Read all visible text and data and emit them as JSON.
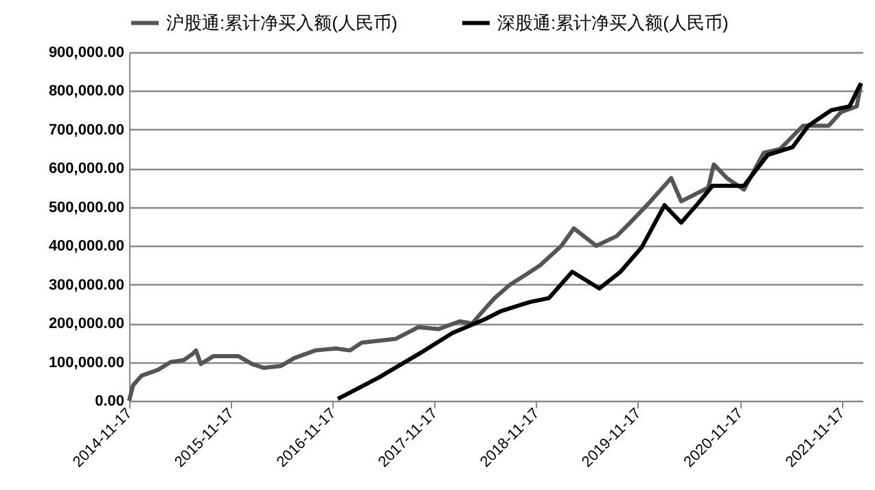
{
  "chart_data": {
    "type": "line",
    "legend": "top",
    "grid": "y",
    "line_style": "solid",
    "marker": "none",
    "xlim": [
      "2014-11-17",
      "2022-01-31"
    ],
    "xticks": [
      "2014-11-17",
      "2015-11-17",
      "2016-11-17",
      "2017-11-17",
      "2018-11-17",
      "2019-11-17",
      "2020-11-17",
      "2021-11-17"
    ],
    "ylim": [
      0,
      900000
    ],
    "yticks": [
      {
        "value": 0,
        "label": "0.00"
      },
      {
        "value": 100000,
        "label": "100,000.00"
      },
      {
        "value": 200000,
        "label": "200,000.00"
      },
      {
        "value": 300000,
        "label": "300,000.00"
      },
      {
        "value": 400000,
        "label": "400,000.00"
      },
      {
        "value": 500000,
        "label": "500,000.00"
      },
      {
        "value": 600000,
        "label": "600,000.00"
      },
      {
        "value": 700000,
        "label": "700,000.00"
      },
      {
        "value": 800000,
        "label": "800,000.00"
      },
      {
        "value": 900000,
        "label": "900,000.00"
      }
    ],
    "series": [
      {
        "name": "沪股通:累计净买入额(人民币)",
        "color": "#555555",
        "x": [
          "2014-11-17",
          "2014-12-01",
          "2015-01-01",
          "2015-03-01",
          "2015-04-15",
          "2015-06-01",
          "2015-07-01",
          "2015-07-15",
          "2015-08-01",
          "2015-09-15",
          "2015-12-15",
          "2016-02-01",
          "2016-03-15",
          "2016-05-15",
          "2016-07-01",
          "2016-09-15",
          "2016-11-28",
          "2017-01-17",
          "2017-03-01",
          "2017-07-01",
          "2017-09-20",
          "2017-12-01",
          "2018-02-15",
          "2018-04-01",
          "2018-05-20",
          "2018-06-20",
          "2018-08-15",
          "2018-10-20",
          "2018-12-01",
          "2019-02-15",
          "2019-04-01",
          "2019-06-20",
          "2019-09-01",
          "2019-10-20",
          "2020-01-01",
          "2020-03-15",
          "2020-04-20",
          "2020-07-26",
          "2020-08-15",
          "2020-10-01",
          "2020-12-01",
          "2021-02-10",
          "2021-04-10",
          "2021-07-01",
          "2021-10-01",
          "2021-11-14",
          "2022-01-10",
          "2022-01-25"
        ],
        "values": [
          0,
          40000,
          65000,
          80000,
          100000,
          105000,
          120000,
          130000,
          95000,
          115000,
          115000,
          95000,
          85000,
          90000,
          110000,
          130000,
          135000,
          130000,
          150000,
          160000,
          190000,
          185000,
          205000,
          200000,
          240000,
          265000,
          300000,
          330000,
          350000,
          400000,
          445000,
          400000,
          425000,
          460000,
          515000,
          575000,
          515000,
          550000,
          610000,
          575000,
          545000,
          640000,
          650000,
          710000,
          710000,
          745000,
          760000,
          820000
        ]
      },
      {
        "name": "深股通:累计净买入额(人民币)",
        "color": "#000000",
        "x": [
          "2016-12-05",
          "2017-05-01",
          "2017-10-01",
          "2018-01-20",
          "2018-05-15",
          "2018-07-15",
          "2018-10-25",
          "2019-01-01",
          "2019-03-26",
          "2019-07-01",
          "2019-09-15",
          "2019-12-01",
          "2020-02-20",
          "2020-04-20",
          "2020-06-20",
          "2020-08-10",
          "2020-12-01",
          "2021-02-25",
          "2021-05-25",
          "2021-07-20",
          "2021-10-10",
          "2021-12-15",
          "2022-01-25"
        ],
        "values": [
          5000,
          60000,
          125000,
          175000,
          210000,
          232000,
          255000,
          265000,
          333000,
          290000,
          333000,
          397000,
          505000,
          460000,
          510000,
          555000,
          555000,
          635000,
          655000,
          710000,
          750000,
          760000,
          820000
        ]
      }
    ]
  }
}
